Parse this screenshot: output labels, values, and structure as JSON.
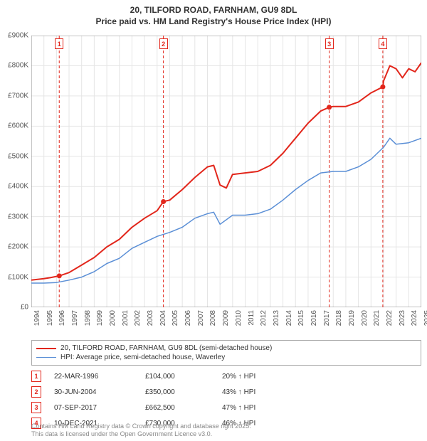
{
  "title_line1": "20, TILFORD ROAD, FARNHAM, GU9 8DL",
  "title_line2": "Price paid vs. HM Land Registry's House Price Index (HPI)",
  "chart": {
    "type": "line",
    "background_color": "#ffffff",
    "grid_color": "#e5e5e5",
    "axis_color": "#888888",
    "x_axis": {
      "min": 1994,
      "max": 2025,
      "ticks": [
        1994,
        1995,
        1996,
        1997,
        1998,
        1999,
        2000,
        2001,
        2002,
        2003,
        2004,
        2005,
        2006,
        2007,
        2008,
        2009,
        2010,
        2011,
        2012,
        2013,
        2014,
        2015,
        2016,
        2017,
        2018,
        2019,
        2020,
        2021,
        2022,
        2023,
        2024,
        2025
      ],
      "tick_fontsize": 10,
      "rotation": -90
    },
    "y_axis": {
      "min": 0,
      "max": 900000,
      "tick_step": 100000,
      "tick_labels": [
        "£0",
        "£100K",
        "£200K",
        "£300K",
        "£400K",
        "£500K",
        "£600K",
        "£700K",
        "£800K",
        "£900K"
      ],
      "tick_fontsize": 10
    },
    "series": [
      {
        "id": "price_paid",
        "label": "20, TILFORD ROAD, FARNHAM, GU9 8DL (semi-detached house)",
        "color": "#e2261b",
        "line_width": 2,
        "data": [
          [
            1994.0,
            90000
          ],
          [
            1995.0,
            95000
          ],
          [
            1995.5,
            98000
          ],
          [
            1996.22,
            104000
          ],
          [
            1997.0,
            115000
          ],
          [
            1998.0,
            140000
          ],
          [
            1999.0,
            165000
          ],
          [
            2000.0,
            200000
          ],
          [
            2001.0,
            225000
          ],
          [
            2002.0,
            265000
          ],
          [
            2003.0,
            295000
          ],
          [
            2004.0,
            320000
          ],
          [
            2004.5,
            350000
          ],
          [
            2005.0,
            355000
          ],
          [
            2006.0,
            390000
          ],
          [
            2007.0,
            430000
          ],
          [
            2008.0,
            465000
          ],
          [
            2008.5,
            470000
          ],
          [
            2009.0,
            405000
          ],
          [
            2009.5,
            395000
          ],
          [
            2010.0,
            440000
          ],
          [
            2011.0,
            445000
          ],
          [
            2012.0,
            450000
          ],
          [
            2013.0,
            470000
          ],
          [
            2014.0,
            510000
          ],
          [
            2015.0,
            560000
          ],
          [
            2016.0,
            610000
          ],
          [
            2017.0,
            650000
          ],
          [
            2017.68,
            662500
          ],
          [
            2018.0,
            665000
          ],
          [
            2019.0,
            665000
          ],
          [
            2020.0,
            680000
          ],
          [
            2021.0,
            710000
          ],
          [
            2021.94,
            730000
          ],
          [
            2022.0,
            750000
          ],
          [
            2022.5,
            800000
          ],
          [
            2023.0,
            790000
          ],
          [
            2023.5,
            760000
          ],
          [
            2024.0,
            790000
          ],
          [
            2024.5,
            780000
          ],
          [
            2025.0,
            810000
          ]
        ],
        "markers": [
          {
            "n": 1,
            "x": 1996.22,
            "y": 104000
          },
          {
            "n": 2,
            "x": 2004.5,
            "y": 350000
          },
          {
            "n": 3,
            "x": 2017.68,
            "y": 662500
          },
          {
            "n": 4,
            "x": 2021.94,
            "y": 730000
          }
        ]
      },
      {
        "id": "hpi",
        "label": "HPI: Average price, semi-detached house, Waverley",
        "color": "#5b8fd6",
        "line_width": 1.5,
        "data": [
          [
            1994.0,
            80000
          ],
          [
            1995.0,
            80000
          ],
          [
            1996.0,
            82000
          ],
          [
            1997.0,
            90000
          ],
          [
            1998.0,
            100000
          ],
          [
            1999.0,
            118000
          ],
          [
            2000.0,
            145000
          ],
          [
            2001.0,
            162000
          ],
          [
            2002.0,
            195000
          ],
          [
            2003.0,
            215000
          ],
          [
            2004.0,
            235000
          ],
          [
            2005.0,
            248000
          ],
          [
            2006.0,
            265000
          ],
          [
            2007.0,
            295000
          ],
          [
            2008.0,
            310000
          ],
          [
            2008.5,
            315000
          ],
          [
            2009.0,
            275000
          ],
          [
            2010.0,
            305000
          ],
          [
            2011.0,
            305000
          ],
          [
            2012.0,
            310000
          ],
          [
            2013.0,
            325000
          ],
          [
            2014.0,
            355000
          ],
          [
            2015.0,
            390000
          ],
          [
            2016.0,
            420000
          ],
          [
            2017.0,
            445000
          ],
          [
            2018.0,
            450000
          ],
          [
            2019.0,
            450000
          ],
          [
            2020.0,
            465000
          ],
          [
            2021.0,
            490000
          ],
          [
            2022.0,
            530000
          ],
          [
            2022.5,
            560000
          ],
          [
            2023.0,
            540000
          ],
          [
            2024.0,
            545000
          ],
          [
            2025.0,
            560000
          ]
        ]
      }
    ],
    "vertical_refs": [
      {
        "x": 1996.22,
        "color": "#e2261b",
        "dash": "4,3"
      },
      {
        "x": 2004.5,
        "color": "#e2261b",
        "dash": "4,3"
      },
      {
        "x": 2017.68,
        "color": "#e2261b",
        "dash": "4,3"
      },
      {
        "x": 2021.94,
        "color": "#e2261b",
        "dash": "4,3"
      }
    ]
  },
  "legend": {
    "border_color": "#aaaaaa",
    "items": [
      {
        "color": "#e2261b",
        "width": 2,
        "label": "20, TILFORD ROAD, FARNHAM, GU9 8DL (semi-detached house)"
      },
      {
        "color": "#5b8fd6",
        "width": 1.5,
        "label": "HPI: Average price, semi-detached house, Waverley"
      }
    ]
  },
  "transactions": [
    {
      "n": "1",
      "date": "22-MAR-1996",
      "price": "£104,000",
      "hpi": "20% ↑ HPI"
    },
    {
      "n": "2",
      "date": "30-JUN-2004",
      "price": "£350,000",
      "hpi": "43% ↑ HPI"
    },
    {
      "n": "3",
      "date": "07-SEP-2017",
      "price": "£662,500",
      "hpi": "47% ↑ HPI"
    },
    {
      "n": "4",
      "date": "10-DEC-2021",
      "price": "£730,000",
      "hpi": "46% ↑ HPI"
    }
  ],
  "attribution_line1": "Contains HM Land Registry data © Crown copyright and database right 2025.",
  "attribution_line2": "This data is licensed under the Open Government Licence v3.0.",
  "marker_border_color": "#e2261b"
}
